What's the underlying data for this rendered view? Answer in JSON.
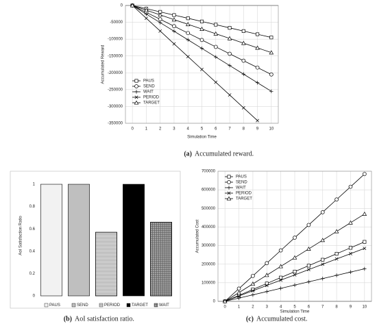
{
  "chart_data": [
    {
      "type": "line",
      "caption_label": "(a)",
      "caption": "Accumulated reward.",
      "xlabel": "Simulation Time",
      "ylabel": "Accumulated Reward",
      "x": [
        0,
        1,
        2,
        3,
        4,
        5,
        6,
        7,
        8,
        9,
        10
      ],
      "series": [
        {
          "name": "PAUS",
          "color": "#000000",
          "values": [
            0,
            -9500,
            -19000,
            -28500,
            -38000,
            -47500,
            -57000,
            -66500,
            -76000,
            -85500,
            -95000
          ]
        },
        {
          "name": "SEND",
          "color": "#000000",
          "values": [
            0,
            -20500,
            -41000,
            -61500,
            -82000,
            -102500,
            -123000,
            -143500,
            -164000,
            -184500,
            -205000
          ]
        },
        {
          "name": "WAIT",
          "color": "#000000",
          "values": [
            0,
            -25500,
            -51000,
            -76500,
            -102000,
            -127500,
            -153000,
            -178500,
            -204000,
            -229500,
            -255000
          ]
        },
        {
          "name": "PERIOD",
          "color": "#000000",
          "values": [
            0,
            -38000,
            -76000,
            -114000,
            -152000,
            -190000,
            -228000,
            -266000,
            -304000,
            -342000,
            null
          ]
        },
        {
          "name": "TARGET",
          "color": "#000000",
          "values": [
            0,
            -14000,
            -28000,
            -42000,
            -56000,
            -70000,
            -84000,
            -98000,
            -112000,
            -126000,
            -140000
          ]
        }
      ],
      "xlim": [
        -0.5,
        10.5
      ],
      "xticks": [
        0,
        1,
        2,
        3,
        4,
        5,
        6,
        7,
        8,
        9,
        10
      ],
      "ylim": [
        -350000,
        0
      ],
      "yticks": [
        -350000,
        -300000,
        -250000,
        -200000,
        -150000,
        -100000,
        -50000,
        0
      ],
      "grid": true,
      "legend": "lower left"
    },
    {
      "type": "bar",
      "caption_label": "(b)",
      "caption": "AoI satisfaction ratio.",
      "ylabel": "AoI Satisfaction Ratio",
      "categories": [
        "PAUS",
        "SEND",
        "PERIOD",
        "TARGET",
        "WAIT"
      ],
      "values": [
        1,
        1,
        0.57,
        1,
        0.66
      ],
      "colors": [
        "#f2f2f2",
        "#bfbfbf",
        "#ececec",
        "#000000",
        "#a0a0a0"
      ],
      "hatches": [
        null,
        null,
        "horizontal",
        null,
        "grid"
      ],
      "ylim": [
        0,
        1.08
      ],
      "yticks": [
        0,
        0.2,
        0.4,
        0.6,
        0.8,
        1
      ],
      "grid": false,
      "legend": "bottom"
    },
    {
      "type": "line",
      "caption_label": "(c)",
      "caption": "Accumulated cost.",
      "xlabel": "Simulation Time",
      "ylabel": "Accumulated Cost",
      "x": [
        0,
        1,
        2,
        3,
        4,
        5,
        6,
        7,
        8,
        9,
        10
      ],
      "series": [
        {
          "name": "PAUS",
          "color": "#000000",
          "values": [
            0,
            32000,
            64000,
            96000,
            128000,
            160000,
            192000,
            224000,
            256000,
            288000,
            320000
          ]
        },
        {
          "name": "SEND",
          "color": "#000000",
          "values": [
            0,
            68500,
            137000,
            205500,
            274000,
            342500,
            411000,
            479500,
            548000,
            616500,
            685000
          ]
        },
        {
          "name": "WAIT",
          "color": "#000000",
          "values": [
            0,
            17500,
            35000,
            52500,
            70000,
            87500,
            105000,
            122500,
            140000,
            157500,
            175000
          ]
        },
        {
          "name": "PERIOD",
          "color": "#000000",
          "values": [
            0,
            28500,
            57000,
            85500,
            114000,
            142500,
            171000,
            199500,
            228000,
            256500,
            285000
          ]
        },
        {
          "name": "TARGET",
          "color": "#000000",
          "values": [
            0,
            47000,
            94000,
            141000,
            188000,
            235000,
            282000,
            329000,
            376000,
            423000,
            470000
          ]
        }
      ],
      "xlim": [
        -0.5,
        10.5
      ],
      "xticks": [
        0,
        1,
        2,
        3,
        4,
        5,
        6,
        7,
        8,
        9,
        10
      ],
      "ylim": [
        0,
        700000
      ],
      "yticks": [
        0,
        100000,
        200000,
        300000,
        400000,
        500000,
        600000,
        700000
      ],
      "grid": true,
      "legend": "upper left"
    }
  ]
}
